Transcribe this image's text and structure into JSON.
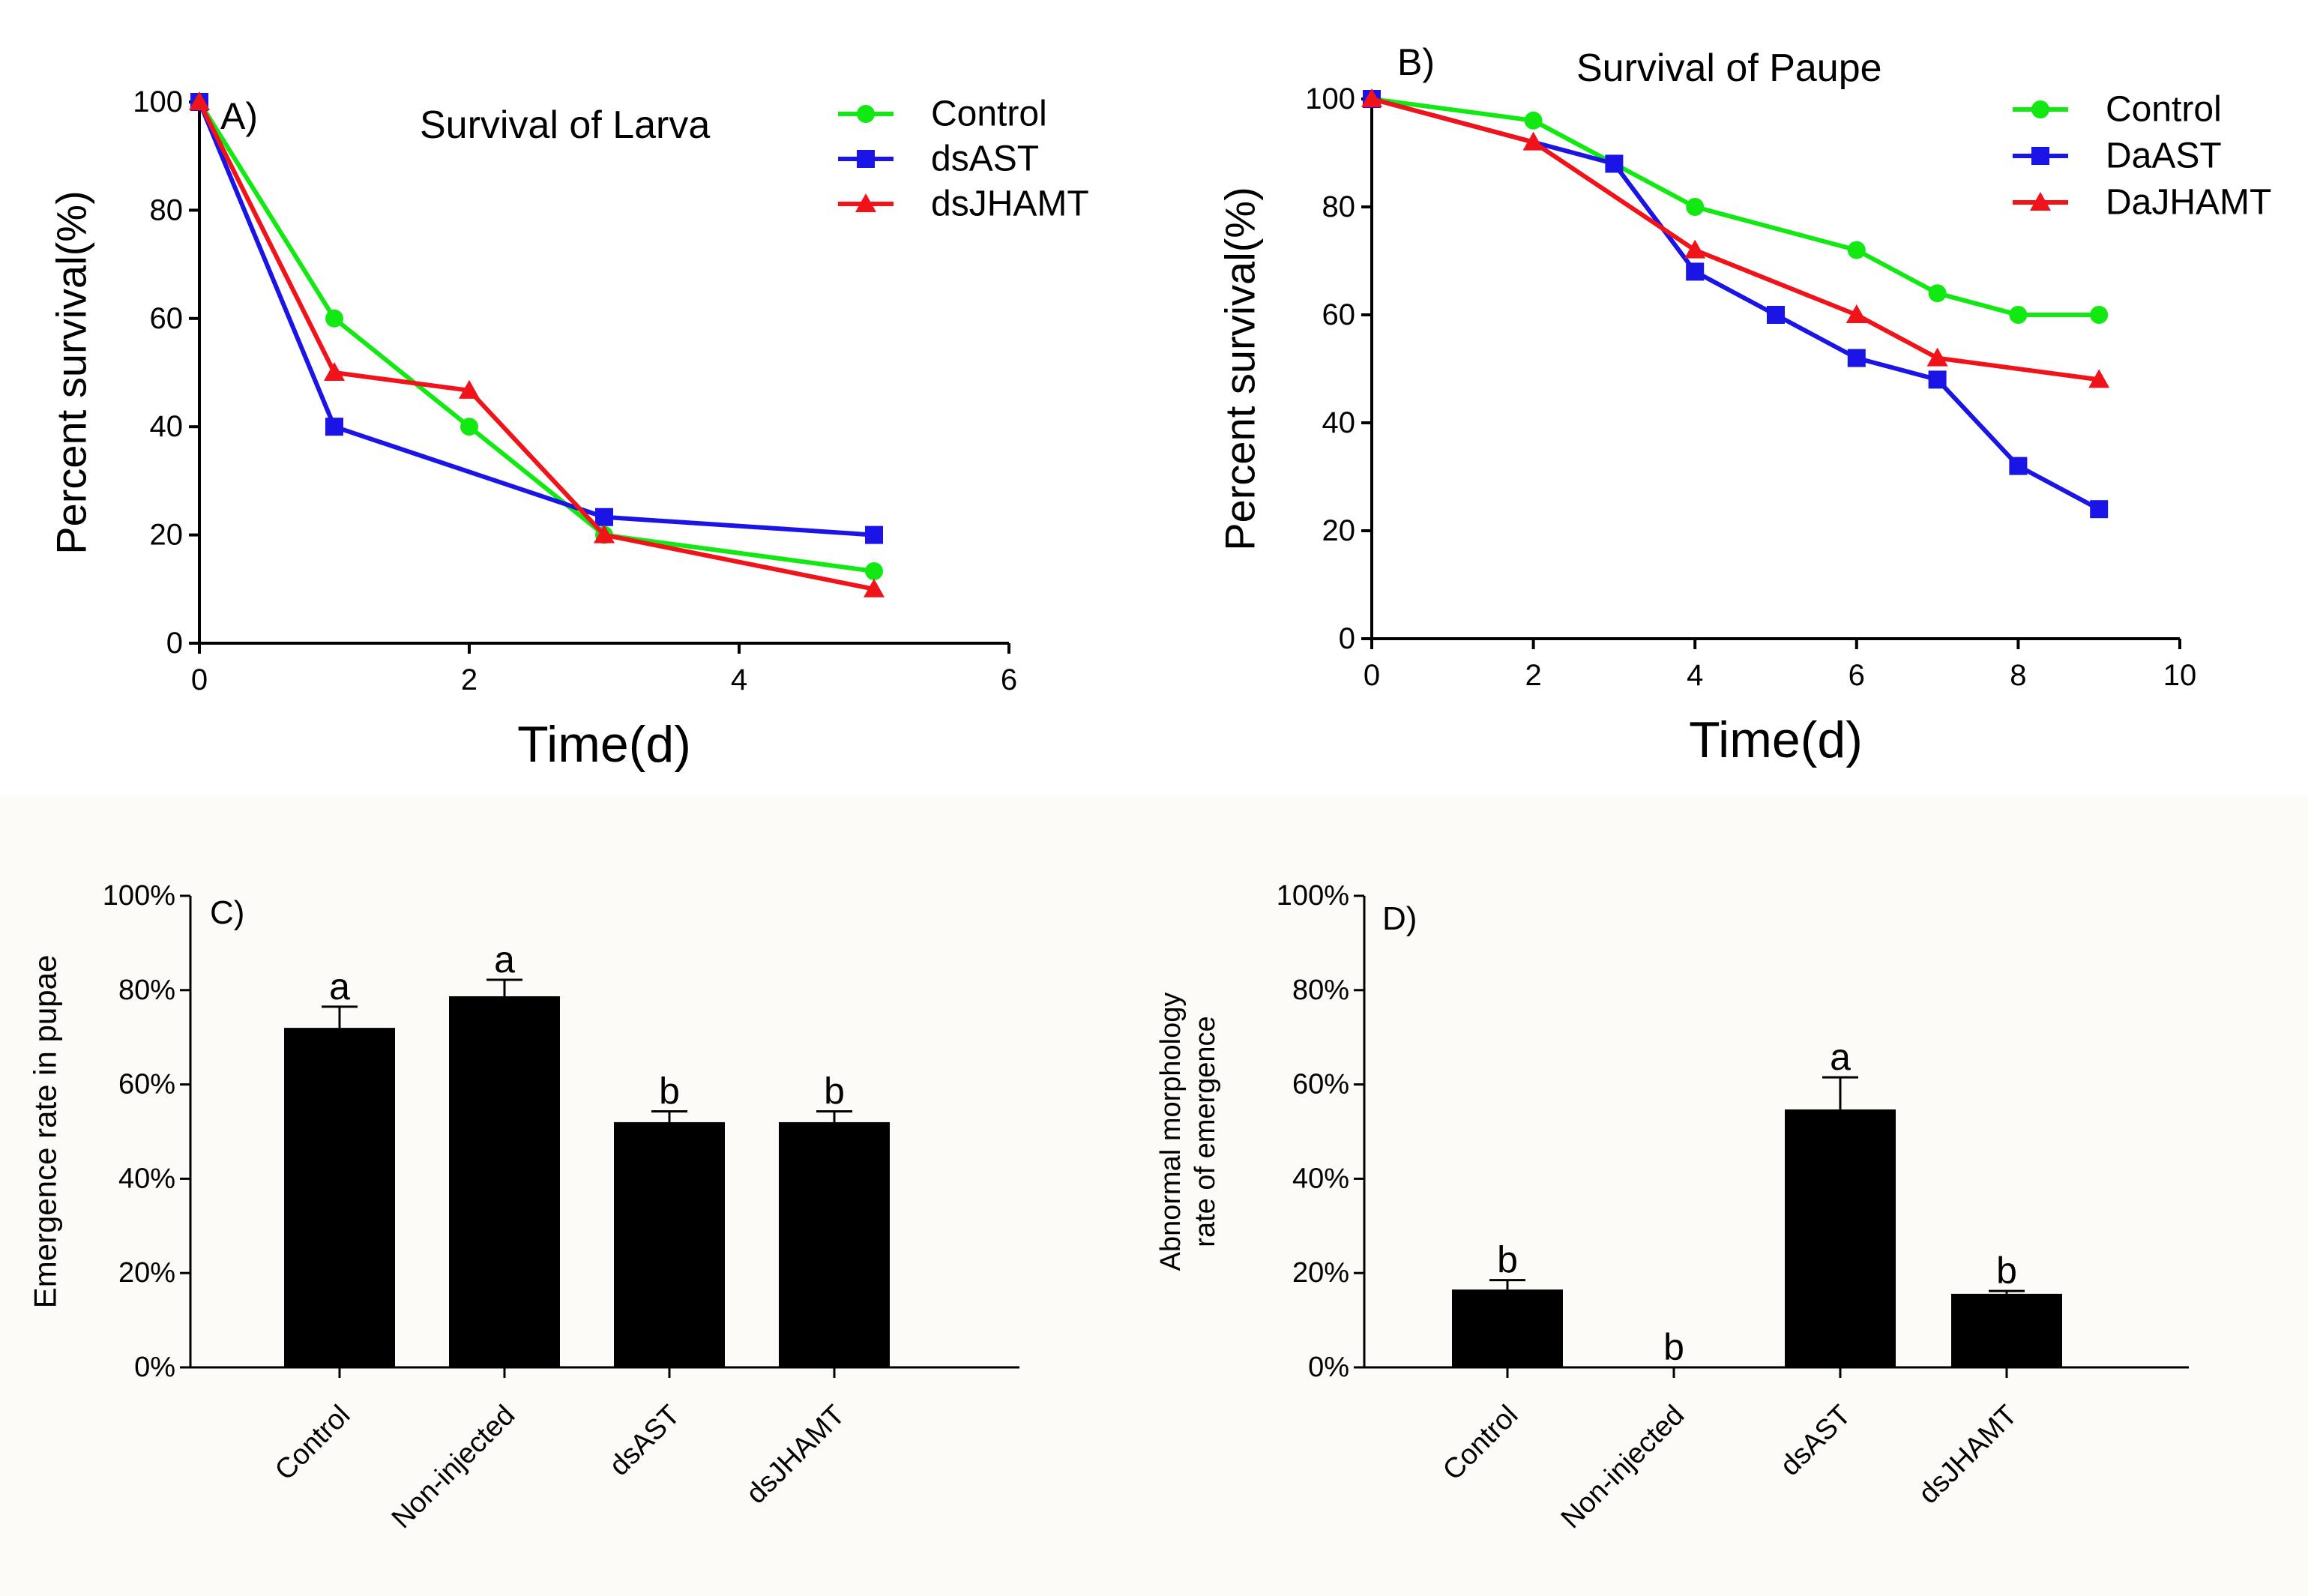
{
  "figure": {
    "bottom_background": "#FDFBF8",
    "colors": {
      "control": "#12E812",
      "ast": "#1A14E6",
      "jhamt": "#F0131A",
      "axis": "#000000",
      "bar": "#000000"
    }
  },
  "chart_data": [
    {
      "panel": "A",
      "type": "line",
      "panel_label": "A)",
      "title": "Survival of Larva",
      "xlabel": "Time(d)",
      "ylabel": "Percent survival(%)",
      "xlim": [
        0,
        6
      ],
      "ylim": [
        0,
        100
      ],
      "xticks": [
        0,
        2,
        4,
        6
      ],
      "yticks": [
        0,
        20,
        40,
        60,
        80,
        100
      ],
      "grid": false,
      "legend_position": "top-right",
      "series": [
        {
          "name": "Control",
          "marker": "circle",
          "color": "#12E812",
          "x": [
            0,
            1,
            2,
            3,
            5
          ],
          "values": [
            100,
            60,
            40,
            20,
            13.3
          ]
        },
        {
          "name": "dsAST",
          "marker": "square",
          "color": "#1A14E6",
          "x": [
            0,
            1,
            3,
            5
          ],
          "values": [
            100,
            40,
            23.3,
            20
          ]
        },
        {
          "name": "dsJHAMT",
          "marker": "triangle",
          "color": "#F0131A",
          "x": [
            0,
            1,
            2,
            3,
            5
          ],
          "values": [
            100,
            50,
            46.7,
            20,
            10
          ]
        }
      ]
    },
    {
      "panel": "B",
      "type": "line",
      "panel_label": "B)",
      "title": "Survival of Paupe",
      "xlabel": "Time(d)",
      "ylabel": "Percent survival(%)",
      "xlim": [
        0,
        10
      ],
      "ylim": [
        0,
        100
      ],
      "xticks": [
        0,
        2,
        4,
        6,
        8,
        10
      ],
      "yticks": [
        0,
        20,
        40,
        60,
        80,
        100
      ],
      "grid": false,
      "legend_position": "top-right",
      "series": [
        {
          "name": "Control",
          "marker": "circle",
          "color": "#12E812",
          "x": [
            0,
            2,
            4,
            6,
            7,
            8,
            9
          ],
          "values": [
            100,
            96,
            80,
            72,
            64,
            60,
            60
          ]
        },
        {
          "name": "DaAST",
          "marker": "square",
          "color": "#1A14E6",
          "x": [
            0,
            3,
            4,
            5,
            6,
            7,
            8,
            9
          ],
          "values": [
            100,
            88,
            68,
            60,
            52,
            48,
            32,
            24
          ]
        },
        {
          "name": "DaJHAMT",
          "marker": "triangle",
          "color": "#F0131A",
          "x": [
            0,
            2,
            4,
            6,
            7,
            9
          ],
          "values": [
            100,
            92,
            72,
            60,
            52,
            48
          ]
        }
      ]
    },
    {
      "panel": "C",
      "type": "bar",
      "panel_label": "C)",
      "ylabel": "Emergence rate in pupae",
      "ylim": [
        0,
        100
      ],
      "yticks": [
        "0%",
        "20%",
        "40%",
        "60%",
        "80%",
        "100%"
      ],
      "categories": [
        "Control",
        "Non-injected",
        "dsAST",
        "dsJHAMT"
      ],
      "values": [
        72,
        78.7,
        52,
        52
      ],
      "errors": [
        4.5,
        3.5,
        2.3,
        2.3
      ],
      "letters": [
        "a",
        "a",
        "b",
        "b"
      ]
    },
    {
      "panel": "D",
      "type": "bar",
      "panel_label": "D)",
      "ylabel": [
        "Abnormal morphology",
        "rate of emergence"
      ],
      "ylim": [
        0,
        100
      ],
      "yticks": [
        "0%",
        "20%",
        "40%",
        "60%",
        "80%",
        "100%"
      ],
      "categories": [
        "Control",
        "Non-injected",
        "dsAST",
        "dsJHAMT"
      ],
      "values": [
        16.5,
        0,
        54.7,
        15.6
      ],
      "errors": [
        2.0,
        0,
        6.8,
        0.6
      ],
      "letters": [
        "b",
        "b",
        "a",
        "b"
      ]
    }
  ]
}
